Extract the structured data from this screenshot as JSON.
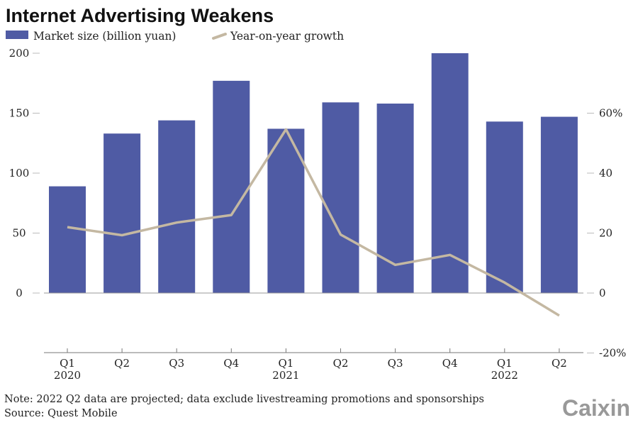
{
  "chart_data": {
    "type": "bar",
    "title": "Internet Advertising Weakens",
    "categories": [
      "Q1",
      "Q2",
      "Q3",
      "Q4",
      "Q1",
      "Q2",
      "Q3",
      "Q4",
      "Q1",
      "Q2"
    ],
    "year_labels": {
      "0": "2020",
      "4": "2021",
      "8": "2022"
    },
    "series": [
      {
        "name": "Market size (billion yuan)",
        "type": "bar",
        "axis": "left",
        "color": "#4f5ba4",
        "values": [
          89,
          133,
          144,
          177,
          137,
          159,
          158,
          200,
          143,
          147
        ]
      },
      {
        "name": "Year-on-year growth",
        "type": "line",
        "axis": "right",
        "color": "#c4b8a2",
        "values": [
          22,
          19.3,
          23.5,
          26,
          54.6,
          19.5,
          9.4,
          12.7,
          3.5,
          -7.5
        ]
      }
    ],
    "left_axis": {
      "ticks": [
        "0",
        "50",
        "100",
        "150",
        "200"
      ],
      "tick_values": [
        0,
        50,
        100,
        150,
        200
      ],
      "ylim": [
        -50,
        200
      ]
    },
    "right_axis": {
      "ticks": [
        "-20%",
        "0",
        "20",
        "40",
        "60%"
      ],
      "tick_values": [
        -20,
        0,
        20,
        40,
        60
      ],
      "ylim": [
        -20,
        60
      ]
    },
    "grid": false,
    "legend": "top-left"
  },
  "footer": {
    "note": "Note: 2022 Q2 data are projected; data exclude livestreaming promotions and sponsorships",
    "source": "Source: Quest Mobile",
    "logo": "Caixin"
  }
}
